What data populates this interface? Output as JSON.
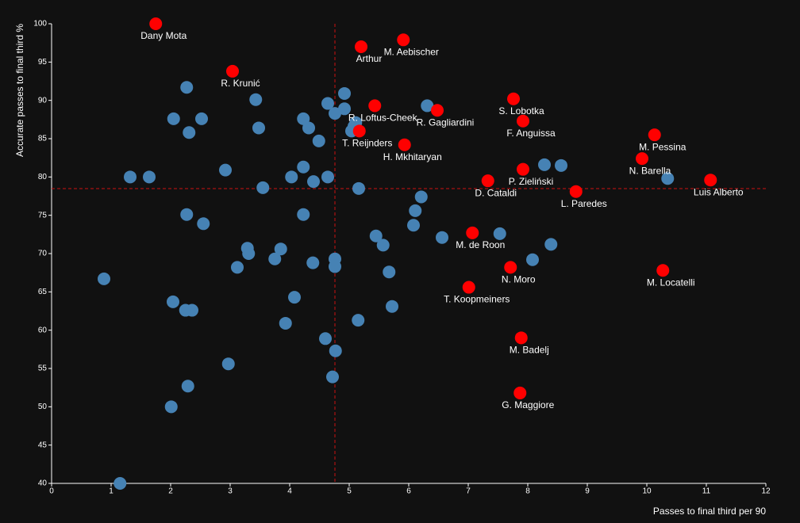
{
  "chart_data": {
    "type": "scatter",
    "x_label": "Passes to final third per 90",
    "y_label": "Accurate passes to final third %",
    "xlim": [
      0,
      12
    ],
    "ylim": [
      40,
      100
    ],
    "xticks": [
      0,
      1,
      2,
      3,
      4,
      5,
      6,
      7,
      8,
      9,
      10,
      11,
      12
    ],
    "yticks": [
      40,
      45,
      50,
      55,
      60,
      65,
      70,
      75,
      80,
      85,
      90,
      95,
      100
    ],
    "ref_lines": {
      "x": 4.76,
      "y": 78.48,
      "color": "#cc1111"
    },
    "series": [
      {
        "color": "#4682b4",
        "x": [
          2.27,
          2.05,
          2.52,
          2.31,
          3.43,
          3.48,
          2.92,
          1.32,
          1.64,
          3.55,
          2.27,
          2.55,
          4.23,
          4.32,
          4.49,
          4.64,
          4.76,
          4.92,
          4.92,
          5.08,
          5.11,
          5.04,
          4.23,
          4.03,
          4.4,
          4.64,
          5.16,
          4.23,
          6.31,
          6.21,
          6.11,
          6.08,
          8.28,
          8.56,
          10.35,
          5.45,
          5.57,
          6.56,
          7.53,
          8.39,
          8.08,
          3.29,
          3.31,
          3.12,
          3.85,
          3.75,
          4.39,
          4.76,
          4.76,
          5.67,
          0.88,
          4.08,
          2.04,
          2.25,
          2.36,
          5.72,
          5.15,
          3.93,
          4.6,
          4.77,
          2.97,
          4.72,
          2.29,
          2.01,
          1.15
        ],
        "values": [
          91.7,
          87.6,
          87.6,
          85.8,
          90.1,
          86.4,
          80.9,
          80.0,
          80.0,
          78.6,
          75.1,
          73.9,
          87.6,
          86.4,
          84.7,
          89.6,
          88.3,
          90.9,
          88.9,
          86.6,
          87.1,
          86.0,
          81.3,
          80.0,
          79.4,
          80.0,
          78.5,
          75.1,
          89.3,
          77.4,
          75.6,
          73.7,
          81.6,
          81.5,
          79.8,
          72.3,
          71.1,
          72.1,
          72.6,
          71.2,
          69.2,
          70.7,
          70.0,
          68.2,
          70.6,
          69.3,
          68.8,
          69.3,
          68.3,
          67.6,
          66.7,
          64.3,
          63.7,
          62.6,
          62.6,
          63.1,
          61.3,
          60.9,
          58.9,
          57.3,
          55.6,
          53.9,
          52.7,
          50.0,
          40.0
        ]
      },
      {
        "color": "#ff0000",
        "x": [
          1.75,
          5.2,
          5.91,
          3.04,
          5.43,
          6.48,
          7.76,
          7.92,
          5.17,
          5.93,
          10.13,
          9.92,
          11.07,
          7.33,
          7.92,
          8.81,
          7.07,
          7.71,
          10.27,
          7.01,
          7.89,
          7.87
        ],
        "values": [
          100,
          97.0,
          97.9,
          93.8,
          89.3,
          88.7,
          90.2,
          87.3,
          86.0,
          84.2,
          85.5,
          82.4,
          79.6,
          79.5,
          81.0,
          78.1,
          72.7,
          68.2,
          67.8,
          65.6,
          59.0,
          51.8
        ],
        "labels": [
          "Dany Mota",
          "Arthur",
          "M. Aebischer",
          "R. Krunić",
          "R. Loftus-Cheek",
          "R. Gagliardini",
          "S. Lobotka",
          "F. Anguissa",
          "T. Reijnders",
          "H. Mkhitaryan",
          "M. Pessina",
          "N. Barella",
          "Luis Alberto",
          "D. Cataldi",
          "P. Zieliński",
          "L. Paredes",
          "M. de Roon",
          "N. Moro",
          "M. Locatelli",
          "T. Koopmeiners",
          "M. Badelj",
          "G. Maggiore"
        ]
      }
    ]
  }
}
